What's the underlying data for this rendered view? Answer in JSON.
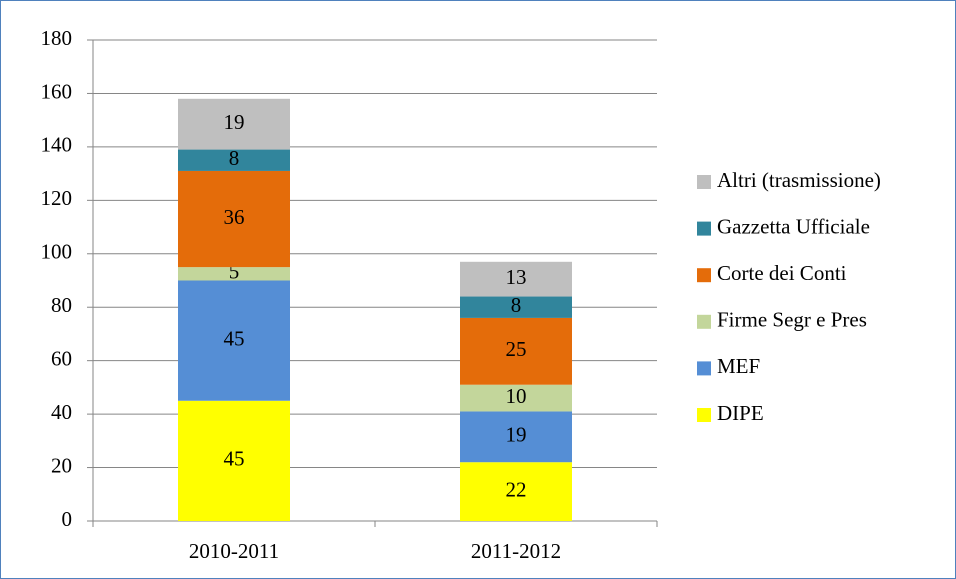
{
  "chart_data": {
    "type": "stacked_bar",
    "categories": [
      "2010-2011",
      "2011-2012"
    ],
    "series": [
      {
        "name": "DIPE",
        "color": "#ffff00",
        "values": [
          45,
          22
        ]
      },
      {
        "name": "MEF",
        "color": "#558ed5",
        "values": [
          45,
          19
        ]
      },
      {
        "name": "Firme Segr e Pres",
        "color": "#c3d69b",
        "values": [
          5,
          10
        ]
      },
      {
        "name": "Corte dei Conti",
        "color": "#e46c0a",
        "values": [
          36,
          25
        ]
      },
      {
        "name": "Gazzetta Ufficiale",
        "color": "#31859c",
        "values": [
          8,
          8
        ]
      },
      {
        "name": "Altri (trasmissione)",
        "color": "#bfbfbf",
        "values": [
          19,
          13
        ]
      }
    ],
    "ylim": [
      0,
      180
    ],
    "yticks": [
      0,
      20,
      40,
      60,
      80,
      100,
      120,
      140,
      160,
      180
    ],
    "grid": true,
    "legend": "right"
  }
}
